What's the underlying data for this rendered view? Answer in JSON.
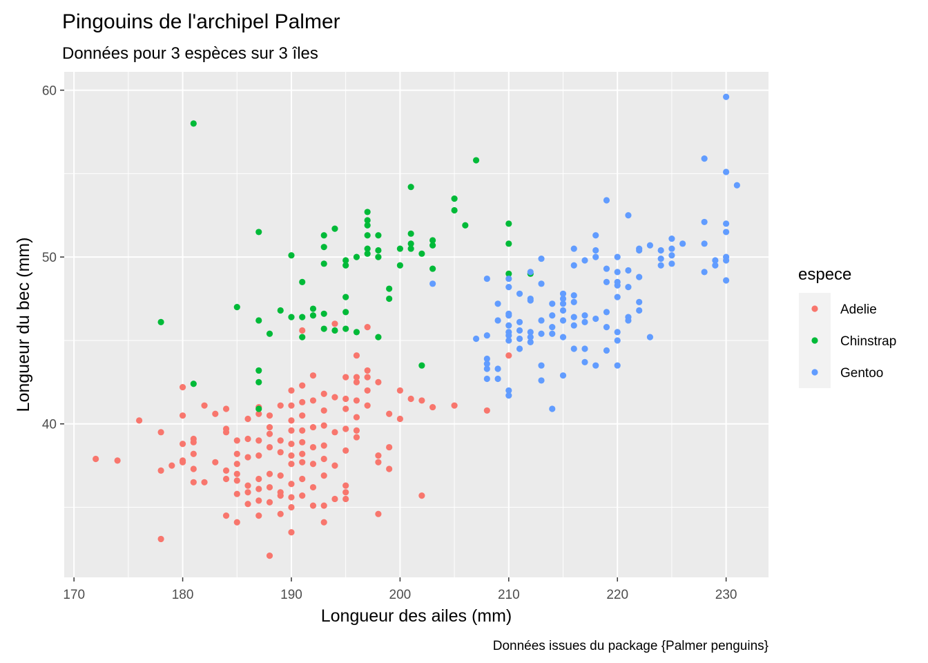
{
  "chart_data": {
    "type": "scatter",
    "title": "Pingouins de l'archipel Palmer",
    "subtitle": "Données pour 3 espèces sur 3 îles",
    "caption": "Données issues du package {Palmer penguins}",
    "xlabel": "Longueur des ailes (mm)",
    "ylabel": "Longueur du bec (mm)",
    "xlim": [
      169.1,
      233.9
    ],
    "ylim": [
      30.8,
      61.1
    ],
    "xticks": [
      170,
      180,
      190,
      200,
      210,
      220,
      230
    ],
    "yticks": [
      40,
      50,
      60
    ],
    "grid": true,
    "legend": {
      "title": "espece",
      "position": "right"
    },
    "series": [
      {
        "name": "Adelie",
        "color": "#F8766D",
        "points": [
          [
            172,
            37.9
          ],
          [
            174,
            37.8
          ],
          [
            176,
            40.2
          ],
          [
            178,
            39.5
          ],
          [
            178,
            37.2
          ],
          [
            178,
            33.1
          ],
          [
            179,
            37.5
          ],
          [
            180,
            42.2
          ],
          [
            180,
            40.5
          ],
          [
            180,
            38.8
          ],
          [
            180,
            37.8
          ],
          [
            180,
            37.7
          ],
          [
            181,
            39.1
          ],
          [
            181,
            38.9
          ],
          [
            181,
            38.2
          ],
          [
            181,
            37.3
          ],
          [
            181,
            36.5
          ],
          [
            182,
            41.1
          ],
          [
            182,
            36.5
          ],
          [
            183,
            40.6
          ],
          [
            183,
            37.7
          ],
          [
            184,
            40.9
          ],
          [
            184,
            39.7
          ],
          [
            184,
            39.5
          ],
          [
            184,
            37.2
          ],
          [
            184,
            36.7
          ],
          [
            184,
            34.5
          ],
          [
            185,
            39.0
          ],
          [
            185,
            38.2
          ],
          [
            185,
            37.6
          ],
          [
            185,
            37.0
          ],
          [
            185,
            36.6
          ],
          [
            185,
            35.8
          ],
          [
            185,
            34.1
          ],
          [
            186,
            40.3
          ],
          [
            186,
            39.1
          ],
          [
            186,
            38.0
          ],
          [
            186,
            36.3
          ],
          [
            186,
            35.9
          ],
          [
            186,
            35.2
          ],
          [
            187,
            41.0
          ],
          [
            187,
            40.6
          ],
          [
            187,
            39.0
          ],
          [
            187,
            38.1
          ],
          [
            187,
            36.7
          ],
          [
            187,
            36.1
          ],
          [
            187,
            35.4
          ],
          [
            187,
            34.5
          ],
          [
            188,
            40.5
          ],
          [
            188,
            39.8
          ],
          [
            188,
            39.4
          ],
          [
            188,
            38.6
          ],
          [
            188,
            37.0
          ],
          [
            188,
            36.2
          ],
          [
            188,
            35.3
          ],
          [
            188,
            32.1
          ],
          [
            189,
            41.1
          ],
          [
            189,
            39.0
          ],
          [
            189,
            38.3
          ],
          [
            189,
            36.9
          ],
          [
            189,
            35.9
          ],
          [
            189,
            35.7
          ],
          [
            189,
            34.6
          ],
          [
            190,
            42.0
          ],
          [
            190,
            41.1
          ],
          [
            190,
            40.2
          ],
          [
            190,
            39.6
          ],
          [
            190,
            38.8
          ],
          [
            190,
            38.1
          ],
          [
            190,
            37.6
          ],
          [
            190,
            36.4
          ],
          [
            190,
            35.6
          ],
          [
            190,
            35.0
          ],
          [
            190,
            33.5
          ],
          [
            191,
            45.6
          ],
          [
            191,
            42.3
          ],
          [
            191,
            41.3
          ],
          [
            191,
            40.5
          ],
          [
            191,
            39.6
          ],
          [
            191,
            38.9
          ],
          [
            191,
            38.2
          ],
          [
            191,
            37.7
          ],
          [
            191,
            36.7
          ],
          [
            191,
            35.7
          ],
          [
            192,
            42.9
          ],
          [
            192,
            41.4
          ],
          [
            192,
            39.8
          ],
          [
            192,
            38.6
          ],
          [
            192,
            37.6
          ],
          [
            192,
            36.2
          ],
          [
            192,
            35.1
          ],
          [
            193,
            41.8
          ],
          [
            193,
            40.8
          ],
          [
            193,
            39.9
          ],
          [
            193,
            38.7
          ],
          [
            193,
            37.9
          ],
          [
            193,
            36.9
          ],
          [
            193,
            35.1
          ],
          [
            193,
            34.1
          ],
          [
            194,
            46.0
          ],
          [
            194,
            41.6
          ],
          [
            194,
            39.5
          ],
          [
            194,
            37.5
          ],
          [
            194,
            35.5
          ],
          [
            195,
            42.8
          ],
          [
            195,
            41.5
          ],
          [
            195,
            40.9
          ],
          [
            195,
            39.7
          ],
          [
            195,
            38.4
          ],
          [
            195,
            36.3
          ],
          [
            195,
            35.9
          ],
          [
            195,
            35.5
          ],
          [
            196,
            44.1
          ],
          [
            196,
            42.8
          ],
          [
            196,
            42.5
          ],
          [
            196,
            41.4
          ],
          [
            196,
            40.4
          ],
          [
            196,
            39.6
          ],
          [
            196,
            39.2
          ],
          [
            197,
            45.8
          ],
          [
            197,
            43.2
          ],
          [
            197,
            42.8
          ],
          [
            197,
            42.0
          ],
          [
            197,
            41.1
          ],
          [
            198,
            42.5
          ],
          [
            198,
            38.1
          ],
          [
            198,
            37.7
          ],
          [
            198,
            34.6
          ],
          [
            199,
            40.6
          ],
          [
            199,
            38.6
          ],
          [
            199,
            37.3
          ],
          [
            200,
            42.0
          ],
          [
            200,
            40.3
          ],
          [
            201,
            41.5
          ],
          [
            202,
            41.4
          ],
          [
            202,
            35.7
          ],
          [
            203,
            41.0
          ],
          [
            205,
            41.1
          ],
          [
            208,
            40.8
          ],
          [
            210,
            44.1
          ]
        ]
      },
      {
        "name": "Chinstrap",
        "color": "#00BA38",
        "points": [
          [
            178,
            46.1
          ],
          [
            181,
            58.0
          ],
          [
            181,
            42.4
          ],
          [
            185,
            47.0
          ],
          [
            187,
            51.5
          ],
          [
            187,
            46.2
          ],
          [
            187,
            43.2
          ],
          [
            187,
            42.5
          ],
          [
            187,
            40.9
          ],
          [
            188,
            45.4
          ],
          [
            189,
            46.8
          ],
          [
            190,
            50.1
          ],
          [
            190,
            46.4
          ],
          [
            191,
            48.5
          ],
          [
            191,
            46.4
          ],
          [
            191,
            45.2
          ],
          [
            192,
            46.9
          ],
          [
            192,
            46.5
          ],
          [
            193,
            51.3
          ],
          [
            193,
            50.6
          ],
          [
            193,
            49.6
          ],
          [
            193,
            46.6
          ],
          [
            193,
            45.7
          ],
          [
            194,
            51.7
          ],
          [
            194,
            45.6
          ],
          [
            195,
            49.8
          ],
          [
            195,
            49.5
          ],
          [
            195,
            47.6
          ],
          [
            195,
            46.7
          ],
          [
            195,
            45.7
          ],
          [
            196,
            50.0
          ],
          [
            196,
            45.5
          ],
          [
            197,
            52.7
          ],
          [
            197,
            52.2
          ],
          [
            197,
            51.9
          ],
          [
            197,
            51.3
          ],
          [
            197,
            50.5
          ],
          [
            197,
            50.2
          ],
          [
            198,
            51.3
          ],
          [
            198,
            50.4
          ],
          [
            198,
            50.0
          ],
          [
            198,
            45.2
          ],
          [
            199,
            48.1
          ],
          [
            199,
            47.5
          ],
          [
            200,
            50.5
          ],
          [
            200,
            49.5
          ],
          [
            201,
            54.2
          ],
          [
            201,
            51.4
          ],
          [
            201,
            50.8
          ],
          [
            201,
            50.5
          ],
          [
            202,
            50.2
          ],
          [
            202,
            43.5
          ],
          [
            203,
            51.0
          ],
          [
            203,
            50.7
          ],
          [
            203,
            49.3
          ],
          [
            205,
            53.5
          ],
          [
            205,
            52.8
          ],
          [
            206,
            51.9
          ],
          [
            207,
            55.8
          ],
          [
            210,
            52.0
          ],
          [
            210,
            50.8
          ],
          [
            210,
            49.0
          ],
          [
            212,
            49.0
          ]
        ]
      },
      {
        "name": "Gentoo",
        "color": "#619CFF",
        "points": [
          [
            203,
            48.4
          ],
          [
            207,
            45.1
          ],
          [
            208,
            48.7
          ],
          [
            208,
            45.3
          ],
          [
            208,
            43.9
          ],
          [
            208,
            43.6
          ],
          [
            208,
            43.3
          ],
          [
            208,
            42.7
          ],
          [
            209,
            47.2
          ],
          [
            209,
            46.2
          ],
          [
            209,
            43.3
          ],
          [
            209,
            42.7
          ],
          [
            210,
            48.7
          ],
          [
            210,
            48.2
          ],
          [
            210,
            46.6
          ],
          [
            210,
            46.5
          ],
          [
            210,
            45.9
          ],
          [
            210,
            45.5
          ],
          [
            210,
            45.3
          ],
          [
            210,
            45.0
          ],
          [
            210,
            42.0
          ],
          [
            210,
            41.7
          ],
          [
            211,
            47.8
          ],
          [
            211,
            46.1
          ],
          [
            211,
            45.6
          ],
          [
            211,
            45.1
          ],
          [
            211,
            44.5
          ],
          [
            212,
            49.1
          ],
          [
            212,
            47.5
          ],
          [
            212,
            47.4
          ],
          [
            212,
            45.5
          ],
          [
            212,
            45.2
          ],
          [
            212,
            44.9
          ],
          [
            213,
            49.9
          ],
          [
            213,
            48.4
          ],
          [
            213,
            46.2
          ],
          [
            213,
            45.4
          ],
          [
            213,
            43.5
          ],
          [
            213,
            42.6
          ],
          [
            214,
            47.2
          ],
          [
            214,
            46.5
          ],
          [
            214,
            45.8
          ],
          [
            214,
            45.4
          ],
          [
            214,
            40.9
          ],
          [
            215,
            47.8
          ],
          [
            215,
            47.5
          ],
          [
            215,
            47.2
          ],
          [
            215,
            46.8
          ],
          [
            215,
            46.2
          ],
          [
            215,
            45.2
          ],
          [
            215,
            42.9
          ],
          [
            216,
            50.5
          ],
          [
            216,
            49.5
          ],
          [
            216,
            47.7
          ],
          [
            216,
            47.3
          ],
          [
            216,
            46.4
          ],
          [
            216,
            45.9
          ],
          [
            216,
            44.5
          ],
          [
            217,
            49.8
          ],
          [
            217,
            46.5
          ],
          [
            217,
            46.1
          ],
          [
            217,
            44.5
          ],
          [
            217,
            43.7
          ],
          [
            218,
            51.3
          ],
          [
            218,
            50.4
          ],
          [
            218,
            50.0
          ],
          [
            218,
            46.3
          ],
          [
            218,
            43.5
          ],
          [
            219,
            53.4
          ],
          [
            219,
            49.3
          ],
          [
            219,
            48.5
          ],
          [
            219,
            46.7
          ],
          [
            219,
            45.8
          ],
          [
            219,
            44.4
          ],
          [
            220,
            50.0
          ],
          [
            220,
            49.1
          ],
          [
            220,
            48.5
          ],
          [
            220,
            48.3
          ],
          [
            220,
            47.6
          ],
          [
            220,
            45.5
          ],
          [
            220,
            45.0
          ],
          [
            220,
            43.5
          ],
          [
            221,
            52.5
          ],
          [
            221,
            49.2
          ],
          [
            221,
            48.2
          ],
          [
            221,
            46.4
          ],
          [
            221,
            46.2
          ],
          [
            222,
            50.5
          ],
          [
            222,
            50.4
          ],
          [
            222,
            48.8
          ],
          [
            222,
            47.3
          ],
          [
            222,
            46.8
          ],
          [
            223,
            50.7
          ],
          [
            223,
            45.2
          ],
          [
            224,
            50.4
          ],
          [
            224,
            49.9
          ],
          [
            224,
            49.5
          ],
          [
            225,
            51.1
          ],
          [
            225,
            50.5
          ],
          [
            225,
            50.1
          ],
          [
            225,
            49.6
          ],
          [
            226,
            50.8
          ],
          [
            228,
            55.9
          ],
          [
            228,
            52.1
          ],
          [
            228,
            50.8
          ],
          [
            228,
            49.1
          ],
          [
            229,
            49.8
          ],
          [
            229,
            49.5
          ],
          [
            230,
            59.6
          ],
          [
            230,
            55.1
          ],
          [
            230,
            52.0
          ],
          [
            230,
            51.5
          ],
          [
            230,
            50.0
          ],
          [
            230,
            49.8
          ],
          [
            230,
            48.6
          ],
          [
            231,
            54.3
          ]
        ]
      }
    ]
  }
}
